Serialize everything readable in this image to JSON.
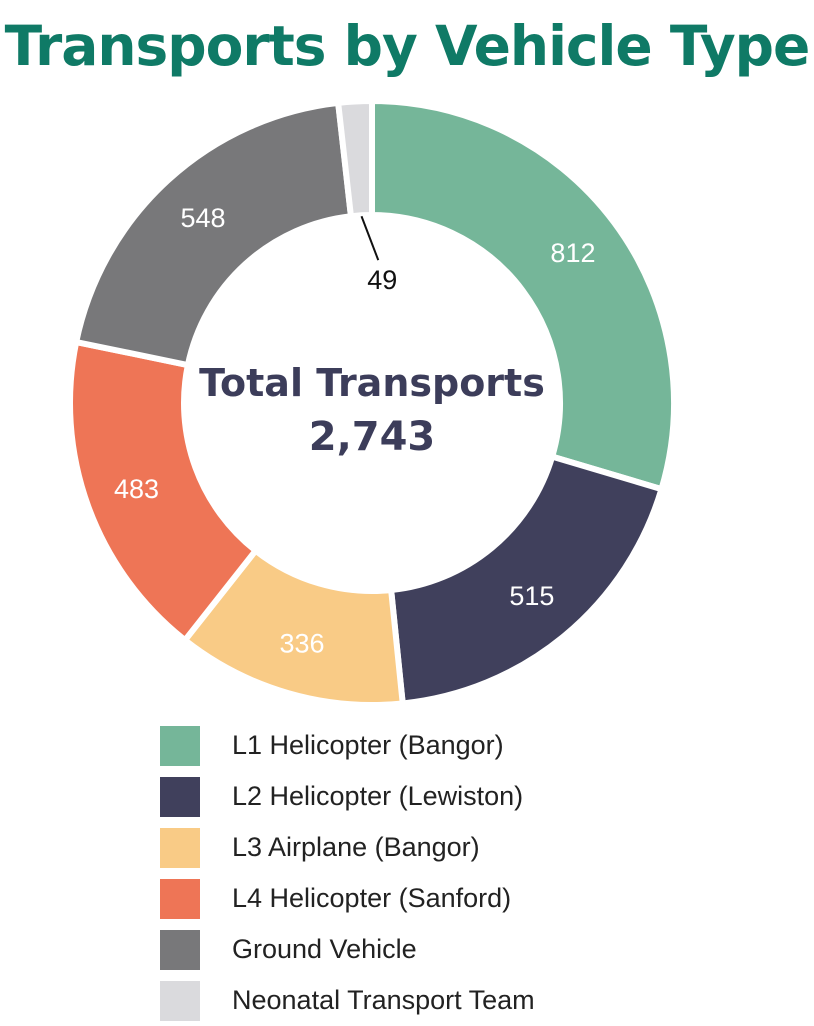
{
  "chart_data": {
    "type": "pie",
    "title": "Transports by Vehicle Type",
    "center_label": "Total Transports",
    "total": "2,743",
    "slices": [
      {
        "label": "L1 Helicopter (Bangor)",
        "value": 812,
        "value_label": "812",
        "color": "#75b699"
      },
      {
        "label": "L2 Helicopter (Lewiston)",
        "value": 515,
        "value_label": "515",
        "color": "#40405c"
      },
      {
        "label": "L3 Airplane (Bangor)",
        "value": 336,
        "value_label": "336",
        "color": "#f9cb86"
      },
      {
        "label": "L4 Helicopter (Sanford)",
        "value": 483,
        "value_label": "483",
        "color": "#ee7556"
      },
      {
        "label": "Ground Vehicle",
        "value": 548,
        "value_label": "548",
        "color": "#78787a"
      },
      {
        "label": "Neonatal Transport Team",
        "value": 49,
        "value_label": "49",
        "color": "#dadadd"
      }
    ],
    "legend_position": "bottom"
  }
}
